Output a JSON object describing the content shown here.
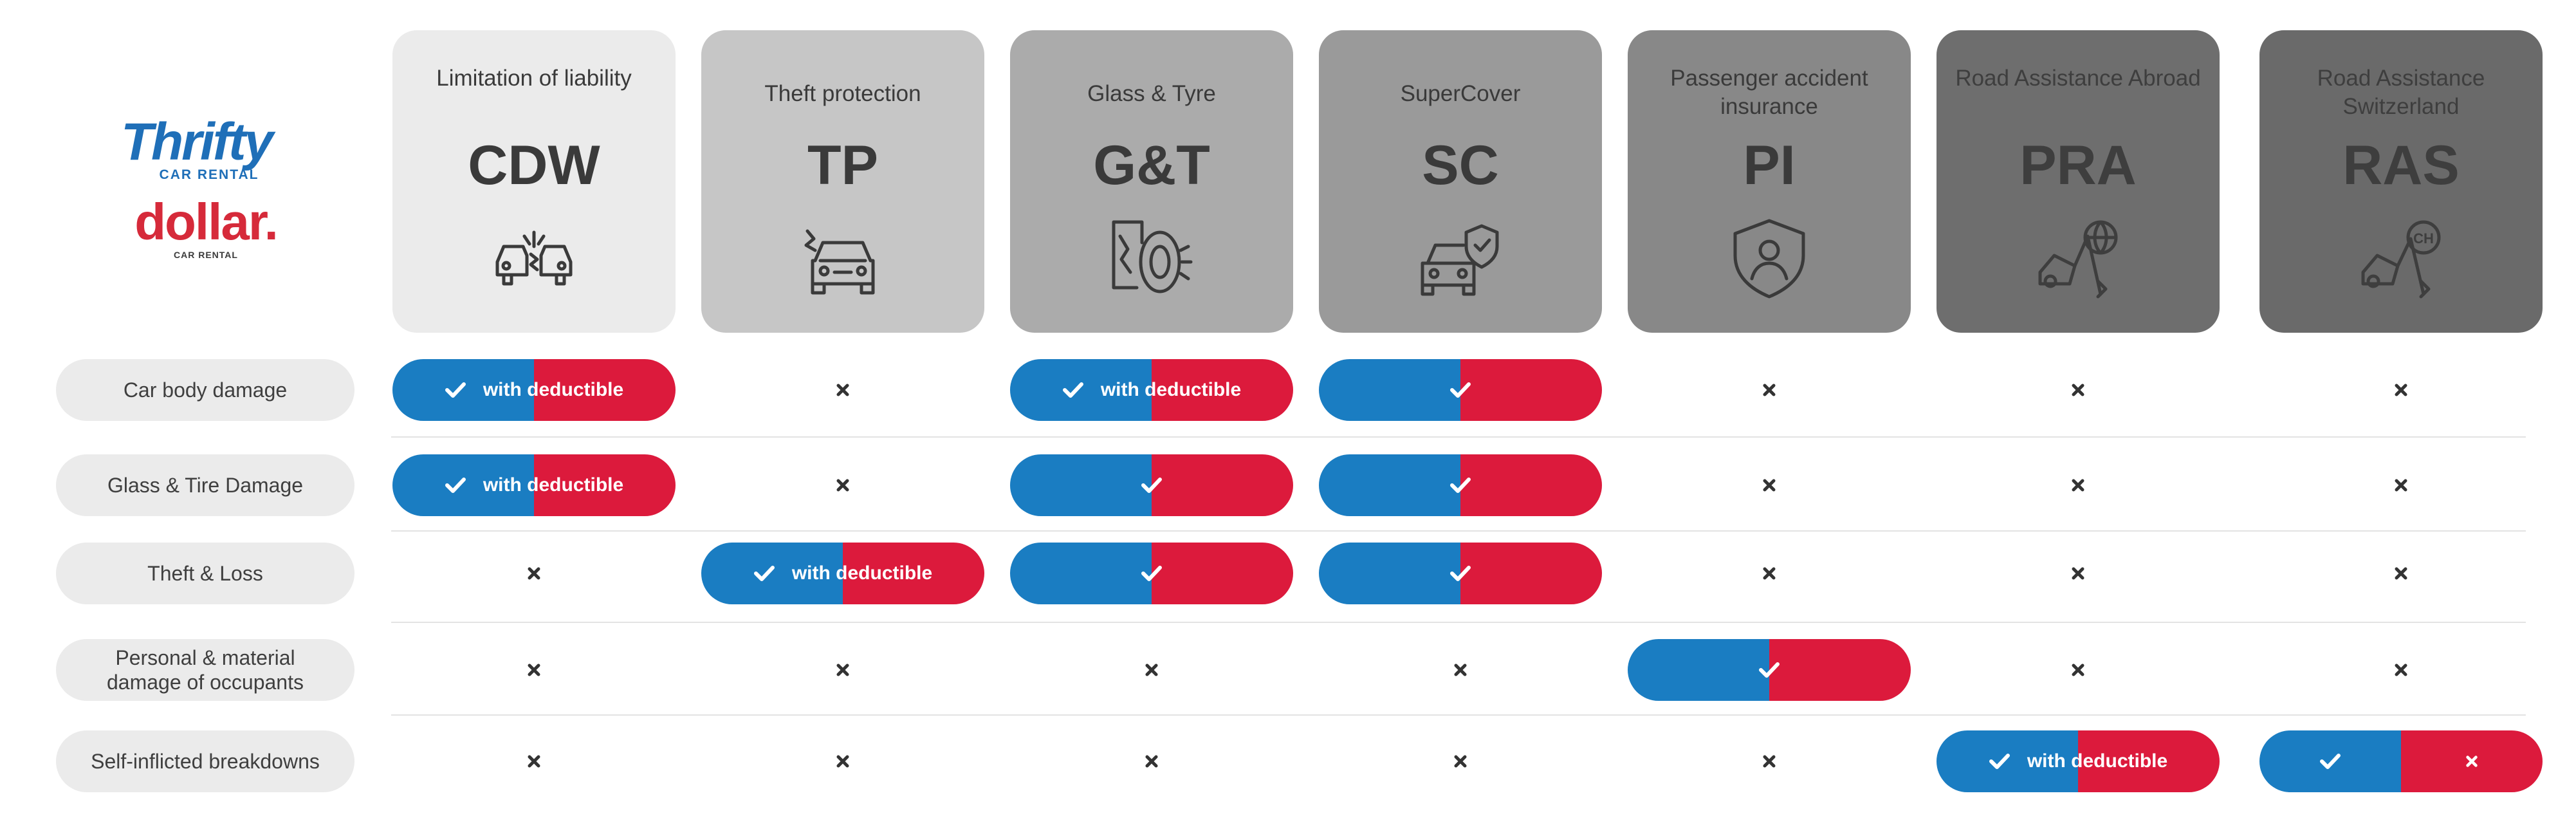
{
  "brand": {
    "thrifty": "Thrifty",
    "thrifty_sub": "CAR RENTAL",
    "dollar": "dollar.",
    "dollar_sub": "CAR RENTAL"
  },
  "columns": [
    {
      "subtitle": "Limitation of liability",
      "abbr": "CDW",
      "icon": "car-collision-icon",
      "bg": "#ebebeb",
      "fg": "#3a3a3a"
    },
    {
      "subtitle": "Theft protection",
      "abbr": "TP",
      "icon": "car-break-in-icon",
      "bg": "#c6c6c6",
      "fg": "#3a3a3a"
    },
    {
      "subtitle": "Glass & Tyre",
      "abbr": "G&T",
      "icon": "broken-glass-tyre-icon",
      "bg": "#ababab",
      "fg": "#3a3a3a"
    },
    {
      "subtitle": "SuperCover",
      "abbr": "SC",
      "icon": "car-shield-icon",
      "bg": "#9a9a9a",
      "fg": "#3a3a3a"
    },
    {
      "subtitle": "Passenger accident insurance",
      "abbr": "PI",
      "icon": "person-shield-icon",
      "bg": "#888888",
      "fg": "#3a3a3a"
    },
    {
      "subtitle": "Road Assistance Abroad",
      "abbr": "PRA",
      "icon": "tow-truck-globe-icon",
      "bg": "#6e6e6e",
      "fg": "#3e3e3e"
    },
    {
      "subtitle": "Road Assistance Switzerland",
      "abbr": "RAS",
      "icon": "tow-truck-ch-icon",
      "bg": "#6a6a6a",
      "fg": "#3e3e3e"
    }
  ],
  "rows": [
    {
      "label": "Car body damage"
    },
    {
      "label": "Glass & Tire Damage"
    },
    {
      "label": "Theft & Loss"
    },
    {
      "label": "Personal & material damage of occupants"
    },
    {
      "label": "Self-inflicted breakdowns"
    }
  ],
  "cells": [
    [
      "deductible",
      "no",
      "deductible",
      "full",
      "no",
      "no",
      "no"
    ],
    [
      "deductible",
      "no",
      "full",
      "full",
      "no",
      "no",
      "no"
    ],
    [
      "no",
      "deductible",
      "full",
      "full",
      "no",
      "no",
      "no"
    ],
    [
      "no",
      "no",
      "no",
      "no",
      "full",
      "no",
      "no"
    ],
    [
      "no",
      "no",
      "no",
      "no",
      "no",
      "deductible",
      "split"
    ]
  ],
  "deductible_text": {
    "with": "with",
    "deductible": "deductible"
  },
  "colors": {
    "pill_blue": "#1a7dc2",
    "pill_red": "#dc1a3c",
    "thrifty_blue": "#1f6fb8",
    "dollar_red": "#d62a3a",
    "cross": "#333333"
  }
}
